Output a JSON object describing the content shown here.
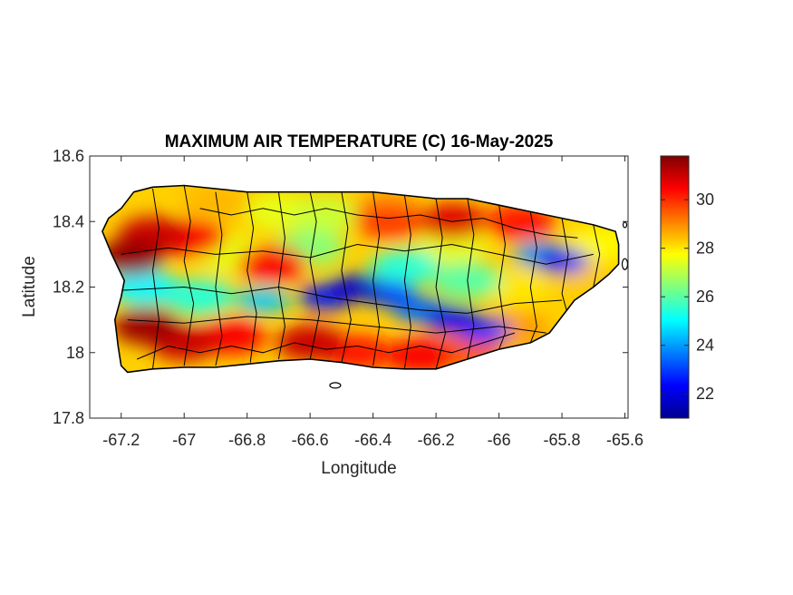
{
  "chart_data": {
    "type": "heatmap",
    "title": "MAXIMUM AIR TEMPERATURE (C) 16-May-2025",
    "xlabel": "Longitude",
    "ylabel": "Latitude",
    "xlim": [
      -67.3,
      -65.59
    ],
    "ylim": [
      17.8,
      18.6
    ],
    "xticks": [
      -67.2,
      -67,
      -66.8,
      -66.6,
      -66.4,
      -66.2,
      -66,
      -65.8,
      -65.6
    ],
    "xtick_labels": [
      "-67.2",
      "-67",
      "-66.8",
      "-66.6",
      "-66.4",
      "-66.2",
      "-66",
      "-65.8",
      "-65.6"
    ],
    "yticks": [
      17.8,
      18,
      18.2,
      18.4,
      18.6
    ],
    "ytick_labels": [
      "17.8",
      "18",
      "18.2",
      "18.4",
      "18.6"
    ],
    "colorbar": {
      "colormap": "jet",
      "range": [
        21,
        31.8
      ],
      "ticks": [
        22,
        24,
        26,
        28,
        30
      ],
      "tick_labels": [
        "22",
        "24",
        "26",
        "28",
        "30"
      ]
    },
    "grid": false,
    "region": "Puerto Rico",
    "island_outline": [
      [
        -67.26,
        18.37
      ],
      [
        -67.24,
        18.41
      ],
      [
        -67.2,
        18.44
      ],
      [
        -67.16,
        18.49
      ],
      [
        -67.1,
        18.505
      ],
      [
        -67.0,
        18.51
      ],
      [
        -66.8,
        18.49
      ],
      [
        -66.6,
        18.49
      ],
      [
        -66.4,
        18.49
      ],
      [
        -66.2,
        18.47
      ],
      [
        -66.1,
        18.47
      ],
      [
        -66.0,
        18.45
      ],
      [
        -65.9,
        18.43
      ],
      [
        -65.8,
        18.41
      ],
      [
        -65.7,
        18.39
      ],
      [
        -65.63,
        18.37
      ],
      [
        -65.62,
        18.33
      ],
      [
        -65.62,
        18.27
      ],
      [
        -65.65,
        18.24
      ],
      [
        -65.7,
        18.2
      ],
      [
        -65.76,
        18.16
      ],
      [
        -65.8,
        18.11
      ],
      [
        -65.84,
        18.06
      ],
      [
        -65.9,
        18.03
      ],
      [
        -66.0,
        18.01
      ],
      [
        -66.1,
        17.98
      ],
      [
        -66.2,
        17.95
      ],
      [
        -66.3,
        17.95
      ],
      [
        -66.4,
        17.955
      ],
      [
        -66.5,
        17.97
      ],
      [
        -66.6,
        17.98
      ],
      [
        -66.7,
        17.975
      ],
      [
        -66.8,
        17.965
      ],
      [
        -66.9,
        17.955
      ],
      [
        -67.0,
        17.955
      ],
      [
        -67.1,
        17.95
      ],
      [
        -67.18,
        17.94
      ],
      [
        -67.2,
        17.96
      ],
      [
        -67.21,
        18.02
      ],
      [
        -67.22,
        18.1
      ],
      [
        -67.2,
        18.17
      ],
      [
        -67.19,
        18.22
      ],
      [
        -67.23,
        18.3
      ],
      [
        -67.26,
        18.37
      ]
    ],
    "temperature_features": [
      {
        "lon": -66.45,
        "lat": 18.2,
        "value": 21.8
      },
      {
        "lon": -66.55,
        "lat": 18.17,
        "value": 22.5
      },
      {
        "lon": -66.35,
        "lat": 18.18,
        "value": 23.0
      },
      {
        "lon": -66.15,
        "lat": 18.1,
        "value": 22.2
      },
      {
        "lon": -66.05,
        "lat": 18.07,
        "value": 22.8
      },
      {
        "lon": -66.25,
        "lat": 18.13,
        "value": 23.5
      },
      {
        "lon": -65.8,
        "lat": 18.28,
        "value": 22.3
      },
      {
        "lon": -65.87,
        "lat": 18.3,
        "value": 24.0
      },
      {
        "lon": -66.75,
        "lat": 18.16,
        "value": 24.5
      },
      {
        "lon": -66.95,
        "lat": 18.17,
        "value": 25.5
      },
      {
        "lon": -67.13,
        "lat": 18.2,
        "value": 25.0
      },
      {
        "lon": -66.3,
        "lat": 18.26,
        "value": 25.5
      },
      {
        "lon": -66.1,
        "lat": 18.22,
        "value": 26.0
      },
      {
        "lon": -66.6,
        "lat": 18.32,
        "value": 26.5
      },
      {
        "lon": -66.55,
        "lat": 18.42,
        "value": 27.2
      },
      {
        "lon": -66.7,
        "lat": 18.43,
        "value": 27.5
      },
      {
        "lon": -66.15,
        "lat": 18.33,
        "value": 27.5
      },
      {
        "lon": -65.95,
        "lat": 18.2,
        "value": 28.0
      },
      {
        "lon": -65.7,
        "lat": 18.22,
        "value": 28.3
      },
      {
        "lon": -65.68,
        "lat": 18.33,
        "value": 27.8
      },
      {
        "lon": -66.85,
        "lat": 18.3,
        "value": 27.5
      },
      {
        "lon": -66.9,
        "lat": 18.46,
        "value": 28.5
      },
      {
        "lon": -66.35,
        "lat": 18.44,
        "value": 28.8
      },
      {
        "lon": -67.1,
        "lat": 18.36,
        "value": 31.0
      },
      {
        "lon": -67.17,
        "lat": 18.29,
        "value": 31.6
      },
      {
        "lon": -66.98,
        "lat": 18.35,
        "value": 30.5
      },
      {
        "lon": -66.72,
        "lat": 18.27,
        "value": 30.5
      },
      {
        "lon": -66.35,
        "lat": 18.4,
        "value": 29.8
      },
      {
        "lon": -66.15,
        "lat": 18.4,
        "value": 30.8
      },
      {
        "lon": -65.93,
        "lat": 18.4,
        "value": 30.2
      },
      {
        "lon": -67.12,
        "lat": 18.08,
        "value": 31.5
      },
      {
        "lon": -67.0,
        "lat": 18.03,
        "value": 31.0
      },
      {
        "lon": -66.85,
        "lat": 18.05,
        "value": 30.5
      },
      {
        "lon": -66.6,
        "lat": 18.03,
        "value": 31.0
      },
      {
        "lon": -66.45,
        "lat": 18.0,
        "value": 30.2
      },
      {
        "lon": -66.25,
        "lat": 17.99,
        "value": 30.5
      },
      {
        "lon": -66.1,
        "lat": 18.0,
        "value": 29.5
      },
      {
        "lon": -65.95,
        "lat": 18.07,
        "value": 28.8
      }
    ]
  }
}
